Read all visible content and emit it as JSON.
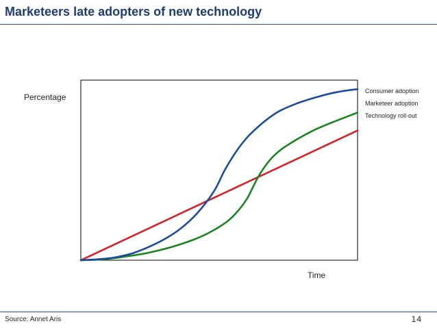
{
  "slide": {
    "title": "Marketeers late adopters of new technology",
    "source": "Source: Annet Aris",
    "page_number": "14"
  },
  "chart_data": {
    "type": "line",
    "title": "",
    "xlabel": "Time",
    "ylabel": "Percentage",
    "xlim": [
      0,
      1
    ],
    "ylim": [
      0,
      1
    ],
    "grid": false,
    "legend": "right",
    "series": [
      {
        "name": "Consumer adoption",
        "color": "#1c4a9c",
        "x": [
          0,
          0.06,
          0.12,
          0.18,
          0.24,
          0.3,
          0.36,
          0.42,
          0.48,
          0.52,
          0.56,
          0.6,
          0.64,
          0.68,
          0.72,
          0.78,
          0.84,
          0.9,
          0.95,
          1.0
        ],
        "y": [
          0.0,
          0.005,
          0.015,
          0.035,
          0.07,
          0.115,
          0.175,
          0.26,
          0.38,
          0.5,
          0.6,
          0.68,
          0.74,
          0.79,
          0.83,
          0.87,
          0.9,
          0.925,
          0.94,
          0.95
        ]
      },
      {
        "name": "Marketeer adoption",
        "color": "#17841e",
        "x": [
          0,
          0.08,
          0.16,
          0.24,
          0.32,
          0.4,
          0.46,
          0.52,
          0.56,
          0.6,
          0.64,
          0.68,
          0.72,
          0.78,
          0.84,
          0.9,
          0.95,
          1.0
        ],
        "y": [
          0.0,
          0.005,
          0.02,
          0.04,
          0.07,
          0.11,
          0.15,
          0.205,
          0.26,
          0.34,
          0.46,
          0.55,
          0.61,
          0.67,
          0.72,
          0.76,
          0.79,
          0.82
        ]
      },
      {
        "name": "Technology roll-out",
        "color": "#d61f26",
        "x": [
          0,
          1.0
        ],
        "y": [
          0.0,
          0.72
        ]
      }
    ]
  }
}
